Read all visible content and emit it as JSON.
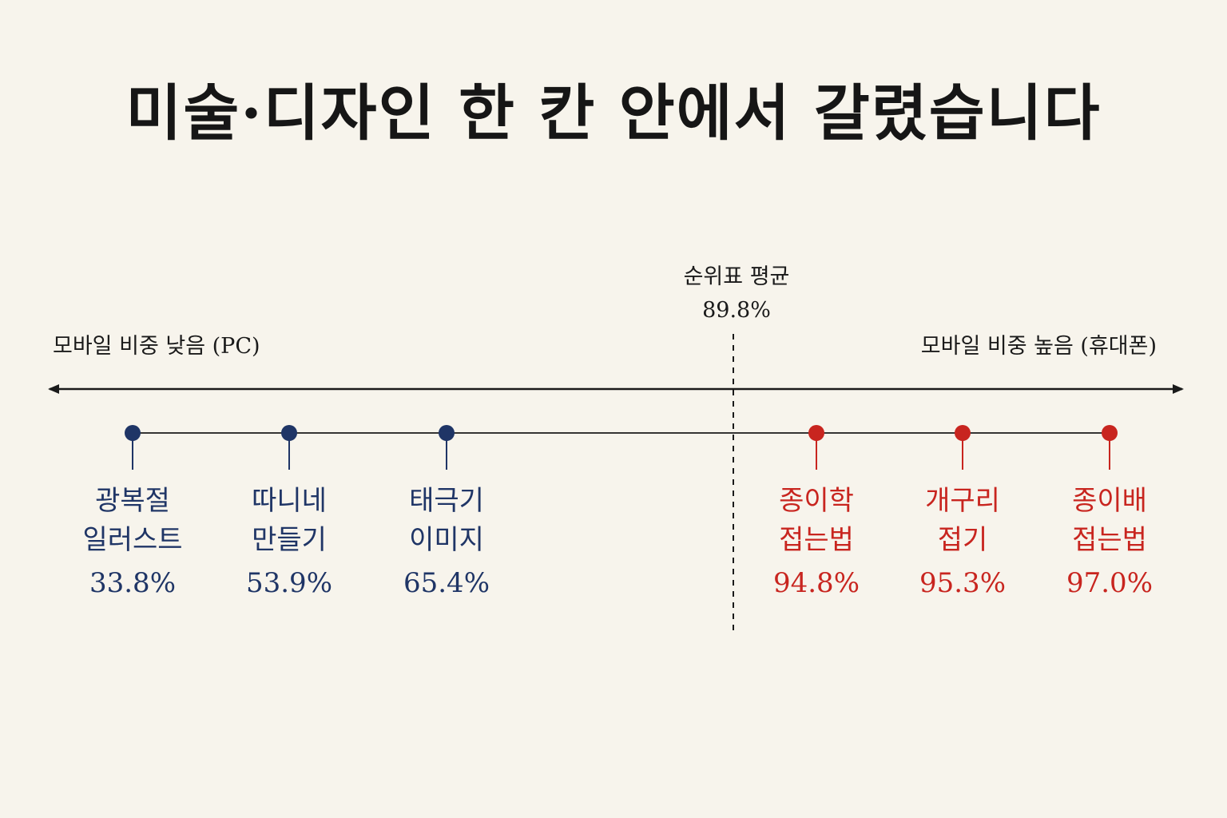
{
  "title": "미술·디자인 한 칸 안에서 갈렸습니다",
  "colors": {
    "background": "#f7f4ec",
    "low_group": "#1f3566",
    "high_group": "#c8251f",
    "axis": "#1a1a1a"
  },
  "chart_data": {
    "type": "scatter",
    "title": "미술·디자인 한 칸 안에서 갈렸습니다",
    "axis": {
      "left_label": "모바일 비중 낮음 (PC)",
      "right_label": "모바일 비중 높음 (휴대폰)"
    },
    "reference": {
      "label": "순위표 평균",
      "value": 89.8,
      "value_text": "89.8%"
    },
    "points": [
      {
        "lines": [
          "광복절",
          "일러스트"
        ],
        "value": 33.8,
        "value_text": "33.8%",
        "group": "low"
      },
      {
        "lines": [
          "따니네",
          "만들기"
        ],
        "value": 53.9,
        "value_text": "53.9%",
        "group": "low"
      },
      {
        "lines": [
          "태극기",
          "이미지"
        ],
        "value": 65.4,
        "value_text": "65.4%",
        "group": "low"
      },
      {
        "lines": [
          "종이학",
          "접는법"
        ],
        "value": 94.8,
        "value_text": "94.8%",
        "group": "high"
      },
      {
        "lines": [
          "개구리",
          "접기"
        ],
        "value": 95.3,
        "value_text": "95.3%",
        "group": "high"
      },
      {
        "lines": [
          "종이배",
          "접는법"
        ],
        "value": 97.0,
        "value_text": "97.0%",
        "group": "high"
      }
    ]
  }
}
